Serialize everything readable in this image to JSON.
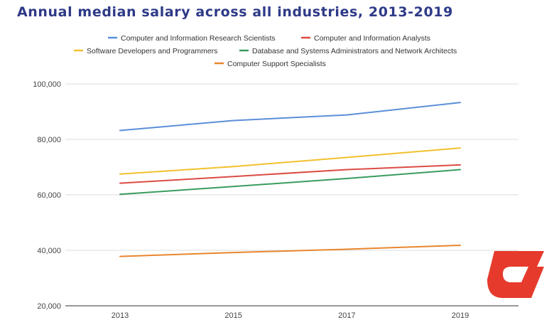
{
  "chart_data": {
    "type": "line",
    "title": "Annual median salary across all industries, 2013-2019",
    "xlabel": "",
    "ylabel": "",
    "x": [
      2013,
      2015,
      2017,
      2019
    ],
    "x_tick_labels": [
      "2013",
      "2015",
      "2017",
      "2019"
    ],
    "ylim": [
      20000,
      100000
    ],
    "y_ticks": [
      20000,
      40000,
      60000,
      80000,
      100000
    ],
    "y_tick_labels": [
      "20,000",
      "40,000",
      "60,000",
      "80,000",
      "100,000"
    ],
    "grid": true,
    "legend_position": "top",
    "series": [
      {
        "name": "Computer and Information Research Scientists",
        "color": "#5b8fd9",
        "values": [
          83200,
          86800,
          88800,
          93300
        ]
      },
      {
        "name": "Computer and Information Analysts",
        "color": "#db4c45",
        "values": [
          64200,
          66600,
          69100,
          70800
        ]
      },
      {
        "name": "Software Developers and Programmers",
        "color": "#f2c12e",
        "values": [
          67500,
          70200,
          73500,
          76900
        ]
      },
      {
        "name": "Database and Systems Administrators and Network Architects",
        "color": "#3a9c5e",
        "values": [
          60200,
          63000,
          65900,
          69100
        ]
      },
      {
        "name": "Computer Support Specialists",
        "color": "#e8862e",
        "values": [
          37800,
          39200,
          40400,
          41800
        ]
      }
    ]
  },
  "logo": {
    "name": "logo-icon",
    "color": "#e63a2c"
  }
}
